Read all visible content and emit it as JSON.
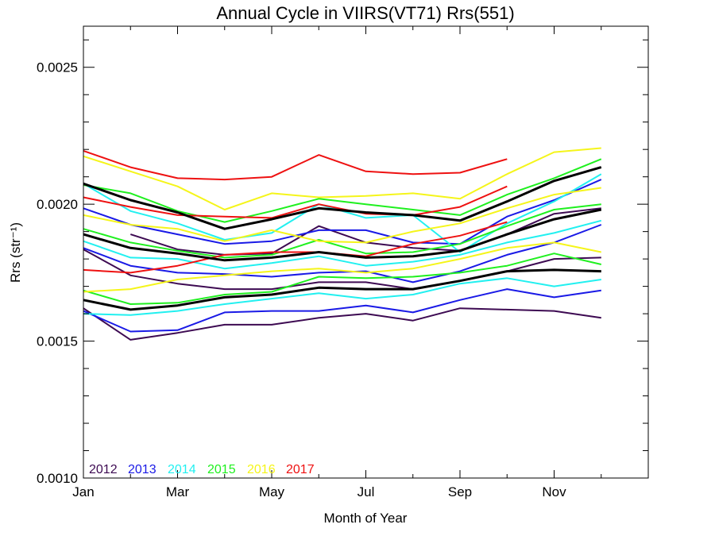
{
  "chart_data": {
    "type": "line",
    "title": "Annual Cycle in VIIRS(VT71) Rrs(551)",
    "xlabel": "Month of Year",
    "ylabel": "Rrs (str⁻¹)",
    "x_unit": "month",
    "xlim": [
      1,
      13
    ],
    "ylim": [
      0.001,
      0.00265
    ],
    "xticks": [
      {
        "value": 1,
        "label": "Jan"
      },
      {
        "value": 3,
        "label": "Mar"
      },
      {
        "value": 5,
        "label": "May"
      },
      {
        "value": 7,
        "label": "Jul"
      },
      {
        "value": 9,
        "label": "Sep"
      },
      {
        "value": 11,
        "label": "Nov"
      }
    ],
    "yticks_labeled": [
      {
        "value": 0.001,
        "label": "0.0010"
      },
      {
        "value": 0.0015,
        "label": "0.0015"
      },
      {
        "value": 0.002,
        "label": "0.0020"
      },
      {
        "value": 0.0025,
        "label": "0.0025"
      }
    ],
    "yticks_minor": [
      0.0011,
      0.0012,
      0.0013,
      0.0014,
      0.0016,
      0.0017,
      0.0018,
      0.0019,
      0.0021,
      0.0022,
      0.0023,
      0.0024,
      0.0026
    ],
    "grid": false,
    "legend_position": "bottom-left",
    "legend": [
      {
        "label": "2012",
        "color": "#3d0a52"
      },
      {
        "label": "2013",
        "color": "#1a1ae6"
      },
      {
        "label": "2014",
        "color": "#22f0f0"
      },
      {
        "label": "2015",
        "color": "#1ff01f"
      },
      {
        "label": "2016",
        "color": "#f5f51a"
      },
      {
        "label": "2017",
        "color": "#ee1111"
      }
    ],
    "series": [
      {
        "color": "#3d0a52",
        "x": [
          1,
          2,
          3,
          4,
          5,
          6,
          7,
          8,
          9,
          10,
          11,
          12
        ],
        "y": [
          0.001835,
          0.00174,
          0.00171,
          0.00169,
          0.00169,
          0.001715,
          0.001715,
          0.00169,
          0.00172,
          0.001755,
          0.0018,
          0.001805
        ]
      },
      {
        "color": "#3d0a52",
        "x": [
          1,
          2,
          3,
          4,
          5,
          6,
          7,
          8,
          9,
          10,
          11,
          12
        ],
        "y": [
          0.00162,
          0.001505,
          0.00153,
          0.00156,
          0.00156,
          0.001585,
          0.0016,
          0.001575,
          0.00162,
          0.001615,
          0.00161,
          0.001585
        ]
      },
      {
        "color": "#3d0a52",
        "x": [
          2,
          3,
          4,
          5,
          6,
          7,
          8,
          9,
          10,
          11,
          12
        ],
        "y": [
          0.00189,
          0.001835,
          0.001815,
          0.00182,
          0.00192,
          0.00186,
          0.00184,
          0.00183,
          0.00189,
          0.001965,
          0.001985
        ]
      },
      {
        "color": "#1a1ae6",
        "x": [
          1,
          2,
          3,
          4,
          5,
          6,
          7,
          8,
          9,
          10,
          11,
          12
        ],
        "y": [
          0.001985,
          0.001925,
          0.00189,
          0.001855,
          0.001865,
          0.001905,
          0.001905,
          0.00186,
          0.001855,
          0.001955,
          0.002015,
          0.00209
        ]
      },
      {
        "color": "#1a1ae6",
        "x": [
          1,
          2,
          3,
          4,
          5,
          6,
          7,
          8,
          9,
          10,
          11,
          12
        ],
        "y": [
          0.00184,
          0.001775,
          0.00175,
          0.001745,
          0.001735,
          0.00175,
          0.001755,
          0.001715,
          0.001755,
          0.001815,
          0.00186,
          0.001925
        ]
      },
      {
        "color": "#1a1ae6",
        "x": [
          1,
          2,
          3,
          4,
          5,
          6,
          7,
          8,
          9,
          10,
          11,
          12
        ],
        "y": [
          0.00161,
          0.001535,
          0.00154,
          0.001605,
          0.00161,
          0.00161,
          0.00163,
          0.001605,
          0.00165,
          0.00169,
          0.00166,
          0.001685
        ]
      },
      {
        "color": "#22f0f0",
        "x": [
          1,
          2,
          3,
          4,
          5,
          6,
          7,
          8,
          9,
          10,
          11,
          12
        ],
        "y": [
          0.002075,
          0.001975,
          0.00193,
          0.00187,
          0.001895,
          0.002,
          0.00195,
          0.00196,
          0.001825,
          0.00193,
          0.00201,
          0.00211
        ]
      },
      {
        "color": "#22f0f0",
        "x": [
          1,
          2,
          3,
          4,
          5,
          6,
          7,
          8,
          9,
          10,
          11,
          12
        ],
        "y": [
          0.001865,
          0.001805,
          0.0018,
          0.001765,
          0.001785,
          0.00181,
          0.001775,
          0.00179,
          0.001815,
          0.00186,
          0.001895,
          0.00194
        ]
      },
      {
        "color": "#22f0f0",
        "x": [
          1,
          2,
          3,
          4,
          5,
          6,
          7,
          8,
          9,
          10,
          11,
          12
        ],
        "y": [
          0.0016,
          0.001595,
          0.00161,
          0.001635,
          0.001655,
          0.001675,
          0.001655,
          0.00167,
          0.00171,
          0.00173,
          0.0017,
          0.001725
        ]
      },
      {
        "color": "#1ff01f",
        "x": [
          1,
          2,
          3,
          4,
          5,
          6,
          7,
          8,
          9,
          10,
          11,
          12
        ],
        "y": [
          0.00207,
          0.00204,
          0.001975,
          0.001935,
          0.001975,
          0.00202,
          0.002,
          0.00198,
          0.00196,
          0.002035,
          0.002095,
          0.002165
        ]
      },
      {
        "color": "#1ff01f",
        "x": [
          1,
          2,
          3,
          4,
          5,
          6,
          7,
          8,
          9,
          10,
          11,
          12
        ],
        "y": [
          0.00191,
          0.00186,
          0.00183,
          0.001805,
          0.001815,
          0.00187,
          0.00182,
          0.001825,
          0.001855,
          0.00192,
          0.00198,
          0.002
        ]
      },
      {
        "color": "#1ff01f",
        "x": [
          1,
          2,
          3,
          4,
          5,
          6,
          7,
          8,
          9,
          10,
          11,
          12
        ],
        "y": [
          0.001685,
          0.001635,
          0.00164,
          0.00167,
          0.00168,
          0.001735,
          0.00173,
          0.001735,
          0.00175,
          0.001775,
          0.00182,
          0.00178
        ]
      },
      {
        "color": "#f5f51a",
        "x": [
          1,
          2,
          3,
          4,
          5,
          6,
          7,
          8,
          9,
          10,
          11,
          12
        ],
        "y": [
          0.002175,
          0.00212,
          0.002065,
          0.00198,
          0.00204,
          0.002025,
          0.00203,
          0.00204,
          0.00202,
          0.00211,
          0.00219,
          0.002205
        ]
      },
      {
        "color": "#f5f51a",
        "x": [
          1,
          2,
          3,
          4,
          5,
          6,
          7,
          8,
          9,
          10,
          11,
          12
        ],
        "y": [
          0.00196,
          0.001925,
          0.00191,
          0.001865,
          0.001905,
          0.001865,
          0.00186,
          0.0019,
          0.00193,
          0.001985,
          0.002035,
          0.00206
        ]
      },
      {
        "color": "#f5f51a",
        "x": [
          1,
          2,
          3,
          4,
          5,
          6,
          7,
          8,
          9,
          10,
          11,
          12
        ],
        "y": [
          0.00168,
          0.00169,
          0.001725,
          0.00174,
          0.001755,
          0.001765,
          0.00175,
          0.001765,
          0.0018,
          0.00184,
          0.00186,
          0.001825
        ]
      },
      {
        "color": "#ee1111",
        "x": [
          1,
          2,
          3,
          4,
          5,
          6,
          7,
          8,
          9,
          10
        ],
        "y": [
          0.002195,
          0.002135,
          0.002095,
          0.00209,
          0.0021,
          0.00218,
          0.00212,
          0.00211,
          0.002115,
          0.002165
        ]
      },
      {
        "color": "#ee1111",
        "x": [
          1,
          2,
          3,
          4,
          5,
          6,
          7,
          8,
          9,
          10
        ],
        "y": [
          0.002025,
          0.00199,
          0.00196,
          0.001955,
          0.00195,
          0.002,
          0.001965,
          0.00196,
          0.00199,
          0.002065
        ]
      },
      {
        "color": "#ee1111",
        "x": [
          1,
          2,
          3,
          4,
          5,
          6,
          7,
          8,
          9,
          10
        ],
        "y": [
          0.00176,
          0.00175,
          0.001775,
          0.001815,
          0.001825,
          0.001825,
          0.00181,
          0.001855,
          0.001885,
          0.001935
        ]
      },
      {
        "color": "#000000",
        "x": [
          1,
          2,
          3,
          4,
          5,
          6,
          7,
          8,
          9,
          10,
          11,
          12
        ],
        "y": [
          0.002075,
          0.002015,
          0.00197,
          0.00191,
          0.001945,
          0.001985,
          0.00197,
          0.00196,
          0.00194,
          0.00201,
          0.002085,
          0.002135
        ]
      },
      {
        "color": "#000000",
        "x": [
          1,
          2,
          3,
          4,
          5,
          6,
          7,
          8,
          9,
          10,
          11,
          12
        ],
        "y": [
          0.00189,
          0.00184,
          0.00182,
          0.001795,
          0.001805,
          0.001825,
          0.001805,
          0.00181,
          0.00183,
          0.00189,
          0.001945,
          0.00198
        ]
      },
      {
        "color": "#000000",
        "x": [
          1,
          2,
          3,
          4,
          5,
          6,
          7,
          8,
          9,
          10,
          11,
          12
        ],
        "y": [
          0.00165,
          0.001615,
          0.00163,
          0.00166,
          0.00167,
          0.001695,
          0.00169,
          0.00169,
          0.00172,
          0.001755,
          0.00176,
          0.001755
        ]
      }
    ]
  }
}
